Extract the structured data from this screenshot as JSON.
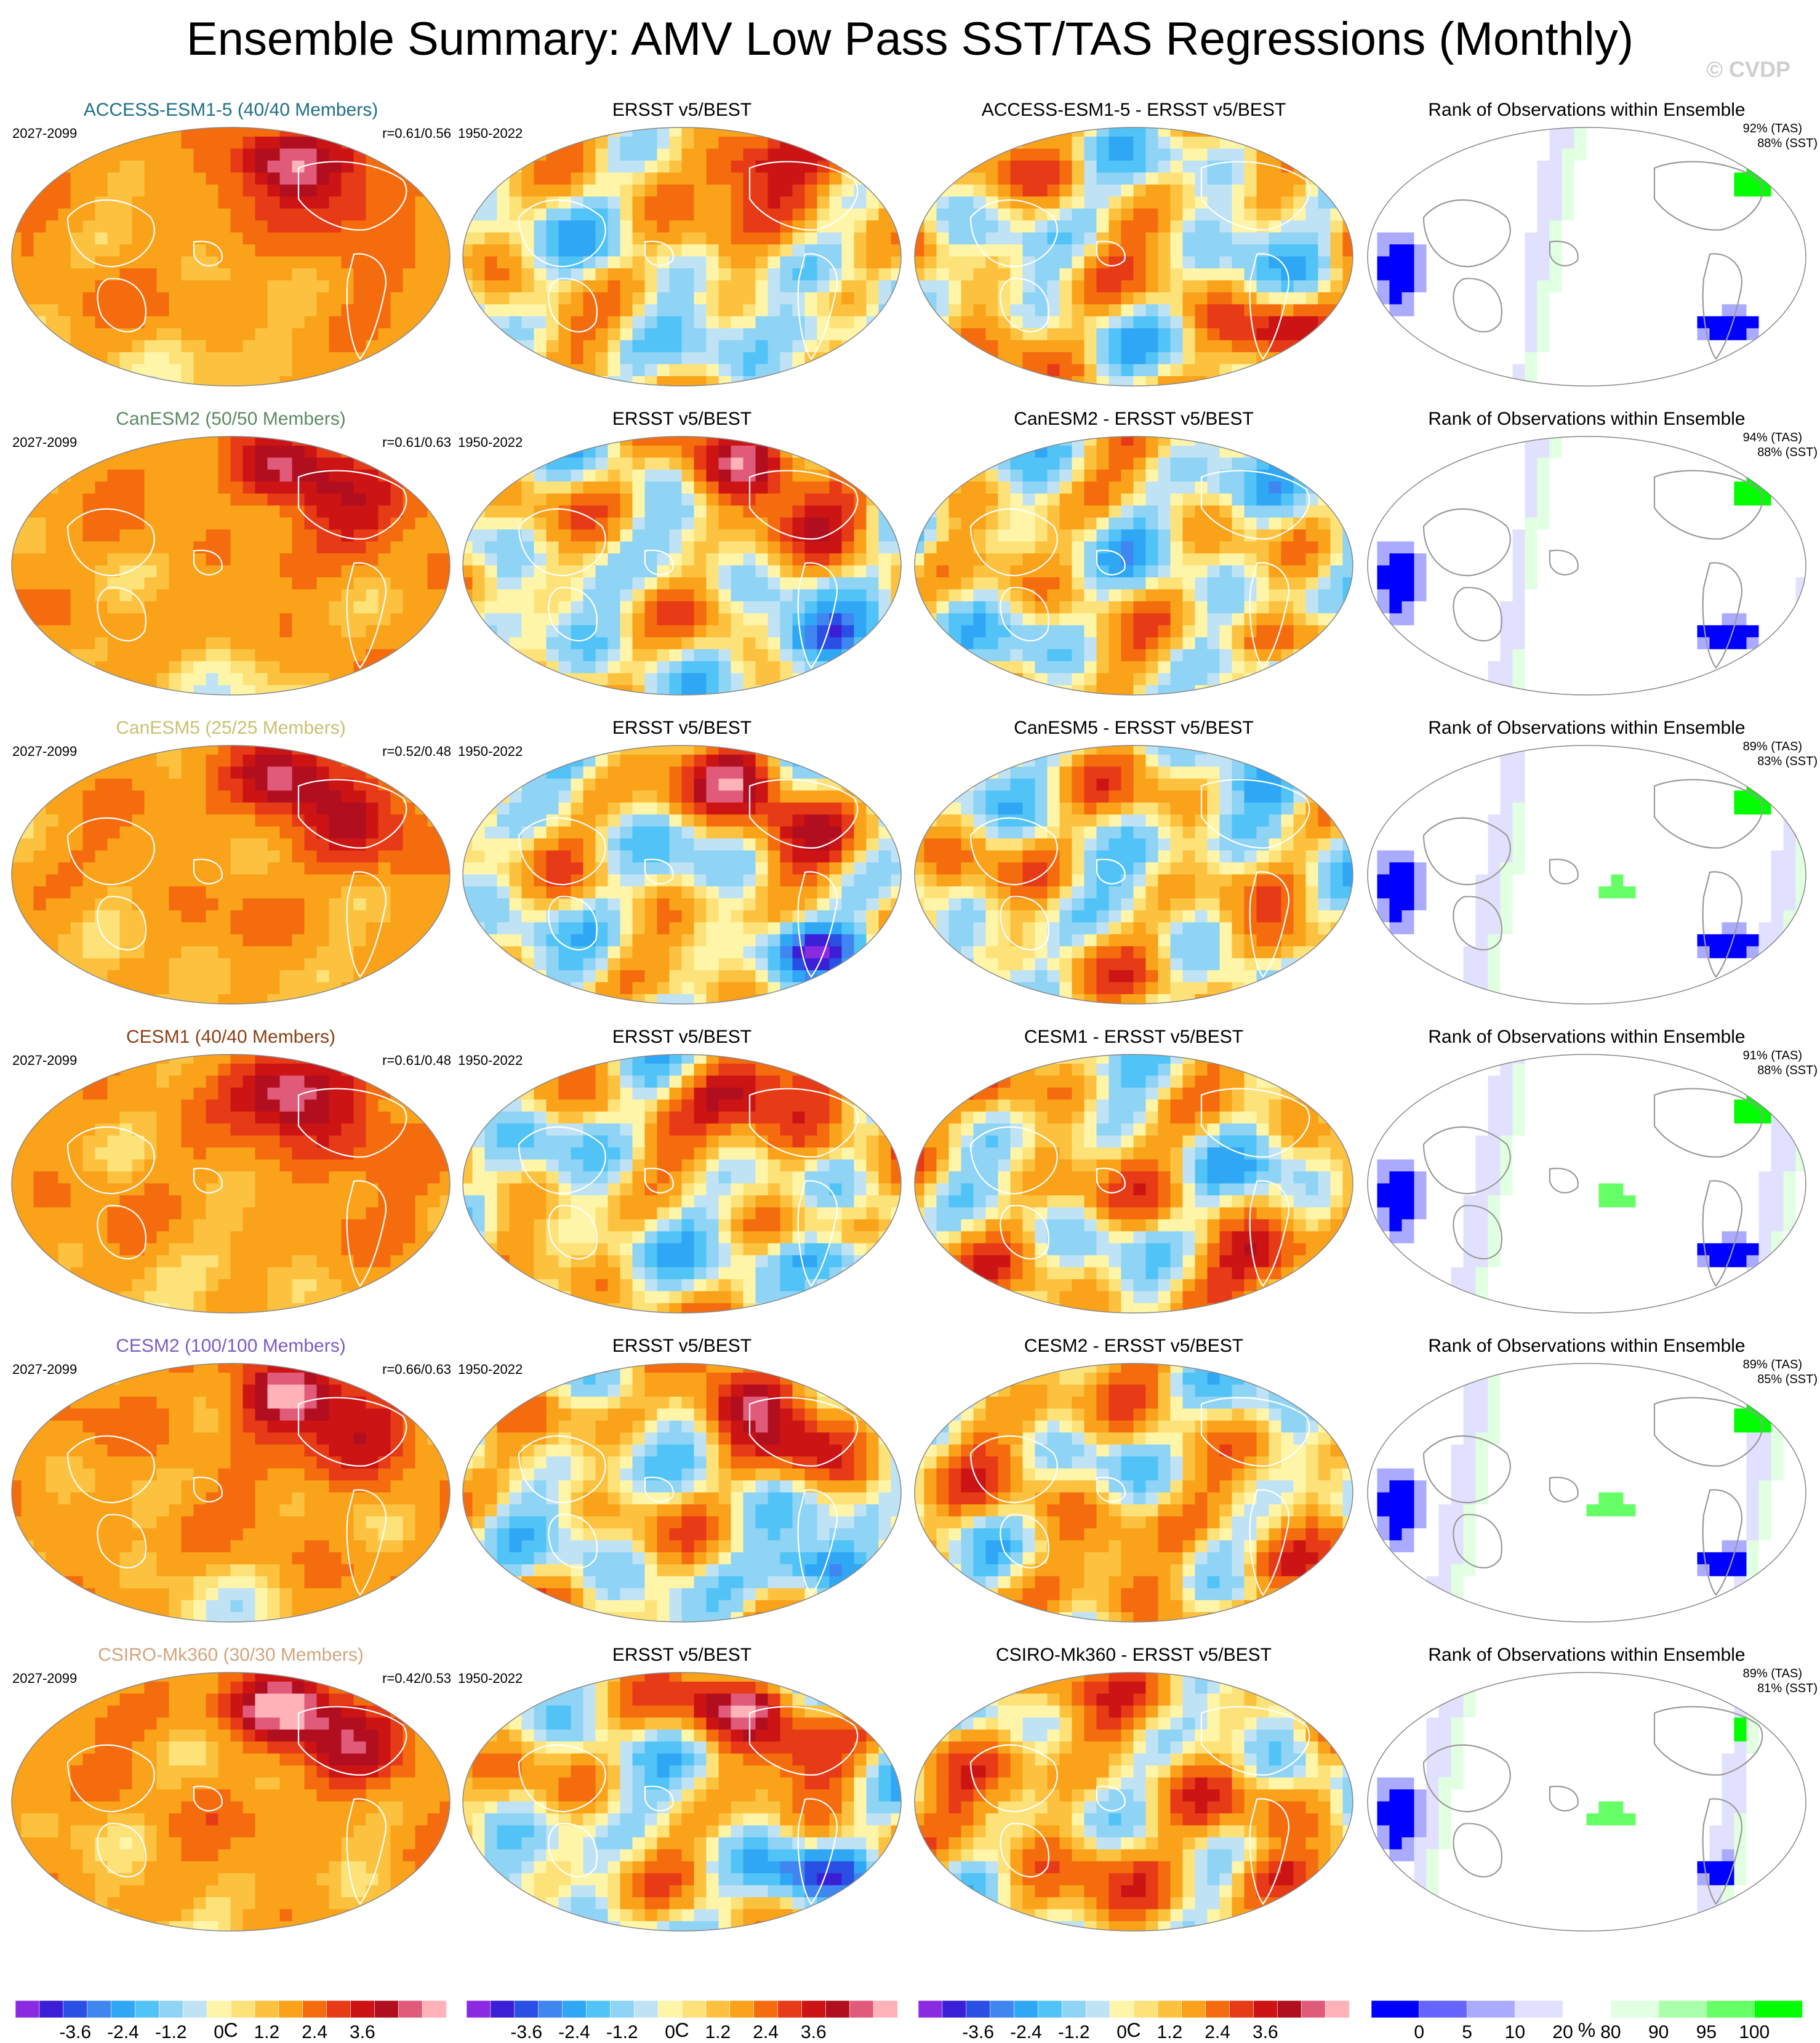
{
  "title": "Ensemble Summary: AMV Low Pass SST/TAS Regressions (Monthly)",
  "credit": "© CVDP",
  "column_titles": {
    "obs": "ERSST v5/BEST",
    "rank": "Rank of Observations within Ensemble"
  },
  "periods": {
    "model": "2027-2099",
    "obs": "1950-2022"
  },
  "rows": [
    {
      "model_title": "ACCESS-ESM1-5 (40/40 Members)",
      "title_color": "#1f6f86",
      "r": "r=0.61/0.56",
      "diff_title": "ACCESS-ESM1-5 - ERSST v5/BEST",
      "tas_pct": "92% (TAS)",
      "sst_pct": "88% (SST)",
      "intensity": 1.0,
      "seed": 11
    },
    {
      "model_title": "CanESM2 (50/50 Members)",
      "title_color": "#5b8a62",
      "r": "r=0.61/0.63",
      "diff_title": "CanESM2 - ERSST v5/BEST",
      "tas_pct": "94% (TAS)",
      "sst_pct": "88% (SST)",
      "intensity": 0.9,
      "seed": 23
    },
    {
      "model_title": "CanESM5 (25/25 Members)",
      "title_color": "#c9c271",
      "r": "r=0.52/0.48",
      "diff_title": "CanESM5 - ERSST v5/BEST",
      "tas_pct": "89% (TAS)",
      "sst_pct": "83% (SST)",
      "intensity": 0.95,
      "seed": 37
    },
    {
      "model_title": "CESM1 (40/40 Members)",
      "title_color": "#8b3f14",
      "r": "r=0.61/0.48",
      "diff_title": "CESM1 - ERSST v5/BEST",
      "tas_pct": "91% (TAS)",
      "sst_pct": "88% (SST)",
      "intensity": 1.05,
      "seed": 41
    },
    {
      "model_title": "CESM2 (100/100 Members)",
      "title_color": "#7b5cc4",
      "r": "r=0.66/0.63",
      "diff_title": "CESM2 - ERSST v5/BEST",
      "tas_pct": "89% (TAS)",
      "sst_pct": "85% (SST)",
      "intensity": 1.1,
      "seed": 53
    },
    {
      "model_title": "CSIRO-Mk360 (30/30 Members)",
      "title_color": "#d3a57e",
      "r": "r=0.42/0.53",
      "diff_title": "CSIRO-Mk360 - ERSST v5/BEST",
      "tas_pct": "89% (TAS)",
      "sst_pct": "81% (SST)",
      "intensity": 1.2,
      "seed": 67
    }
  ],
  "colorbars": [
    {
      "name": "regression",
      "colors": [
        "#8a2be2",
        "#3a1fd6",
        "#2a4fe4",
        "#3f86f0",
        "#2fa7f5",
        "#52c3f7",
        "#8fd3f5",
        "#bfe3f5",
        "#fff5a8",
        "#fde27a",
        "#fcc23f",
        "#f9a21a",
        "#f46c0d",
        "#e63b16",
        "#cc1414",
        "#b10f1f",
        "#e05a7a",
        "#ffb2b7"
      ],
      "labels": [
        "-3.6",
        "-2.4",
        "-1.2",
        "0",
        "1.2",
        "2.4",
        "3.6"
      ],
      "unit": "C"
    },
    {
      "name": "rank",
      "colors": [
        "#0000ff",
        "#6666ff",
        "#aaaaff",
        "#e1e1ff",
        "#ffffff",
        "#e1ffe1",
        "#aaffaa",
        "#66ff66",
        "#00ff00"
      ],
      "labels": [
        "0",
        "5",
        "10",
        "20",
        "80",
        "90",
        "95",
        "100"
      ],
      "unit": "%"
    }
  ],
  "chart_data": {
    "type": "heatmap",
    "title": "Ensemble Summary: AMV Low Pass SST/TAS Regressions (Monthly)",
    "projection": "global map (Robinson-like)",
    "panels_per_row": [
      "model ensemble mean",
      "ERSST v5/BEST",
      "model - ERSST v5/BEST",
      "Rank of Observations within Ensemble"
    ],
    "regression_levels": [
      -3.6,
      -2.4,
      -1.2,
      0,
      1.2,
      2.4,
      3.6
    ],
    "rank_levels": [
      0,
      5,
      10,
      20,
      80,
      90,
      95,
      100
    ],
    "units": {
      "regression": "C",
      "rank": "%"
    },
    "rank_summary": [
      {
        "model": "ACCESS-ESM1-5",
        "tas": 92,
        "sst": 88
      },
      {
        "model": "CanESM2",
        "tas": 94,
        "sst": 88
      },
      {
        "model": "CanESM5",
        "tas": 89,
        "sst": 83
      },
      {
        "model": "CESM1",
        "tas": 91,
        "sst": 88
      },
      {
        "model": "CESM2",
        "tas": 89,
        "sst": 85
      },
      {
        "model": "CSIRO-Mk360",
        "tas": 89,
        "sst": 81
      }
    ],
    "pattern_correlations": [
      {
        "model": "ACCESS-ESM1-5",
        "r": [
          0.61,
          0.56
        ]
      },
      {
        "model": "CanESM2",
        "r": [
          0.61,
          0.63
        ]
      },
      {
        "model": "CanESM5",
        "r": [
          0.52,
          0.48
        ]
      },
      {
        "model": "CESM1",
        "r": [
          0.61,
          0.48
        ]
      },
      {
        "model": "CESM2",
        "r": [
          0.66,
          0.63
        ]
      },
      {
        "model": "CSIRO-Mk360",
        "r": [
          0.42,
          0.53
        ]
      }
    ]
  }
}
